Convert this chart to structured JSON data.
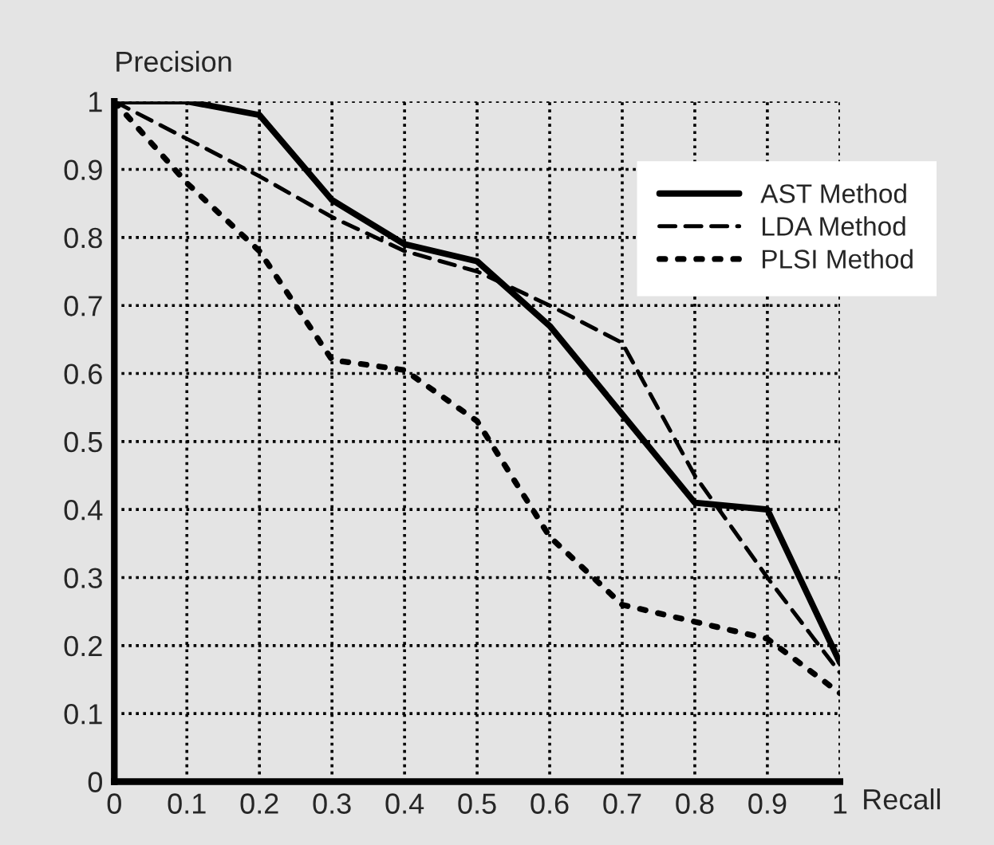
{
  "chart_data": {
    "type": "line",
    "xlabel": "Recall",
    "ylabel": "Precision",
    "x": [
      0,
      0.1,
      0.2,
      0.3,
      0.4,
      0.5,
      0.6,
      0.7,
      0.8,
      0.9,
      1
    ],
    "series": [
      {
        "name": "AST Method",
        "color": "#000000",
        "line_style": "solid",
        "values": [
          1.0,
          1.0,
          0.98,
          0.855,
          0.79,
          0.765,
          0.67,
          0.54,
          0.41,
          0.4,
          0.175
        ]
      },
      {
        "name": "LDA Method",
        "color": "#000000",
        "line_style": "dashed",
        "values": [
          1.0,
          0.945,
          0.89,
          0.83,
          0.78,
          0.75,
          0.7,
          0.645,
          0.45,
          0.3,
          0.16
        ]
      },
      {
        "name": "PLSI Method",
        "color": "#000000",
        "line_style": "dotted",
        "values": [
          1.0,
          0.88,
          0.78,
          0.62,
          0.605,
          0.53,
          0.36,
          0.26,
          0.235,
          0.21,
          0.13
        ]
      }
    ],
    "xlim": [
      0,
      1
    ],
    "ylim": [
      0,
      1
    ],
    "xticks": [
      0,
      0.1,
      0.2,
      0.3,
      0.4,
      0.5,
      0.6,
      0.7,
      0.8,
      0.9,
      1
    ],
    "yticks": [
      0,
      0.1,
      0.2,
      0.3,
      0.4,
      0.5,
      0.6,
      0.7,
      0.8,
      0.9,
      1
    ],
    "grid": true,
    "legend": "top right",
    "marker": "none"
  }
}
